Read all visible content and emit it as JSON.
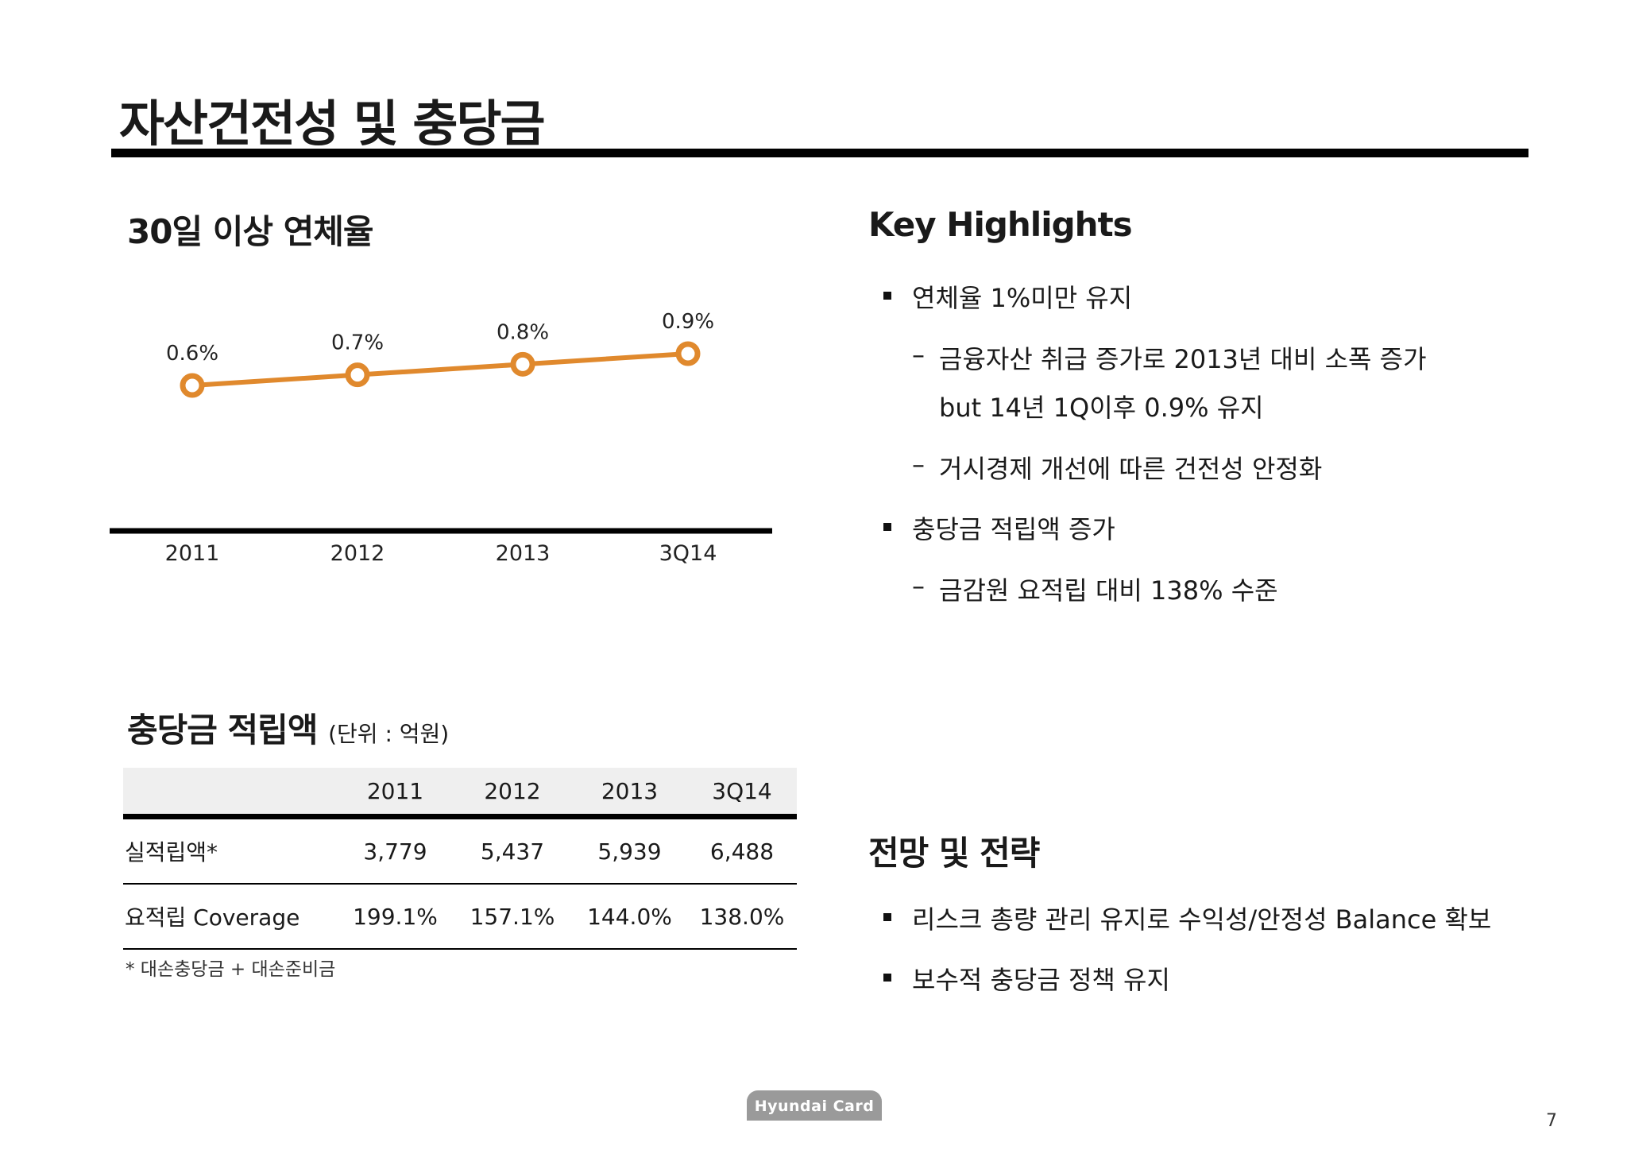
{
  "title": "자산건전성 및 충당금",
  "delinquency": {
    "heading": "30일 이상 연체율",
    "chart_data": {
      "type": "line",
      "categories": [
        "2011",
        "2012",
        "2013",
        "3Q14"
      ],
      "series": [
        {
          "values": [
            0.6,
            0.7,
            0.8,
            0.9
          ]
        }
      ],
      "data_labels": [
        "0.6%",
        "0.7%",
        "0.8%",
        "0.9%"
      ],
      "title": "30일 이상 연체율",
      "xlabel": "",
      "ylabel": "",
      "grid": false,
      "colors": {
        "line": "#E0892D",
        "axis": "#000000"
      }
    }
  },
  "provision": {
    "heading": "충당금 적립액",
    "unit": "(단위 : 억원)",
    "columns": [
      "",
      "2011",
      "2012",
      "2013",
      "3Q14"
    ],
    "rows": [
      {
        "label": "실적립액*",
        "values": [
          "3,779",
          "5,437",
          "5,939",
          "6,488"
        ]
      },
      {
        "label": "요적립 Coverage",
        "values": [
          "199.1%",
          "157.1%",
          "144.0%",
          "138.0%"
        ]
      }
    ],
    "footnote": "* 대손충당금 + 대손준비금"
  },
  "highlights": {
    "heading": "Key Highlights",
    "items": [
      "연체율 1%미만 유지",
      "금융자산 취급 증가로 2013년 대비 소폭 증가",
      "but 14년 1Q이후 0.9% 유지",
      "거시경제 개선에 따른 건전성 안정화",
      "충당금 적립액 증가",
      "금감원 요적립 대비 138% 수준"
    ]
  },
  "outlook": {
    "heading": "전망 및 전략",
    "items": [
      "리스크 총량 관리 유지로 수익성/안정성 Balance 확보",
      "보수적 충당금 정책 유지"
    ]
  },
  "footer": {
    "logo_text": "Hyundai Card",
    "page_number": "7"
  }
}
